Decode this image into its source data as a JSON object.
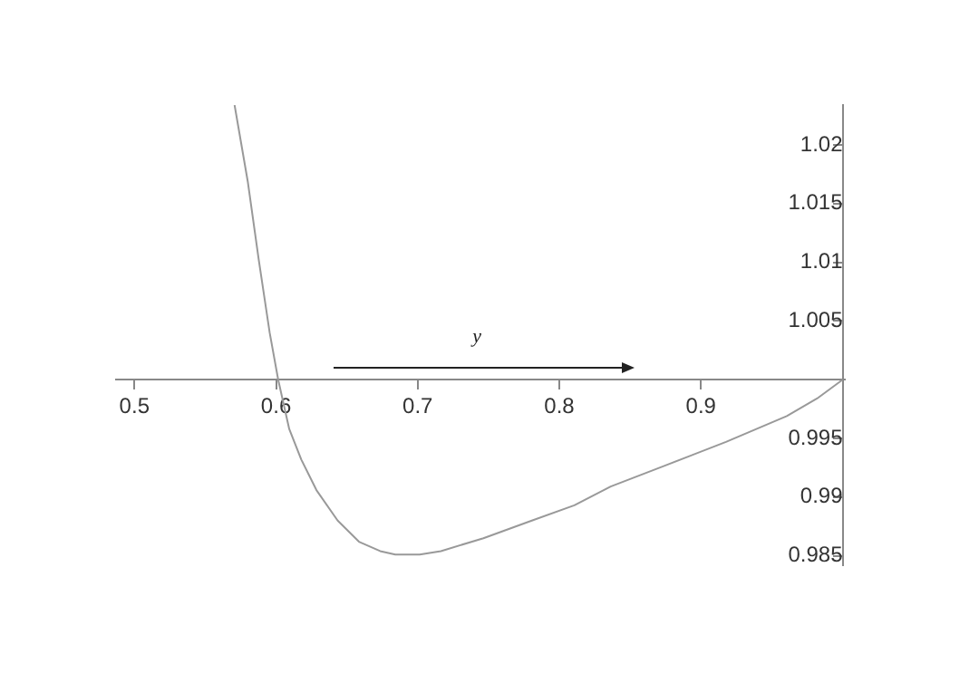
{
  "chart_data": {
    "type": "line",
    "color": "#999999",
    "x": [
      0.5707,
      0.58,
      0.5878,
      0.5955,
      0.6015,
      0.6093,
      0.6178,
      0.6285,
      0.6435,
      0.6585,
      0.6735,
      0.6842,
      0.7014,
      0.7164,
      0.7464,
      0.7806,
      0.8106,
      0.8363,
      0.8749,
      0.9177,
      0.9606,
      0.982,
      1.0
    ],
    "values": [
      1.0234,
      1.0169,
      1.0102,
      1.004,
      1.0,
      0.9958,
      0.9932,
      0.9906,
      0.988,
      0.9862,
      0.9854,
      0.9851,
      0.9851,
      0.9854,
      0.9865,
      0.988,
      0.9893,
      0.9909,
      0.9927,
      0.9947,
      0.9969,
      0.9984,
      1.0
    ],
    "xlim": [
      0.487,
      1.0016
    ],
    "ylim": [
      0.9842,
      1.0234
    ],
    "xticks": [
      0.5,
      0.6,
      0.7,
      0.8,
      0.9
    ],
    "yticks": [
      0.985,
      0.99,
      0.995,
      1.005,
      1.01,
      1.015,
      1.02
    ],
    "annotations": [
      "y"
    ]
  }
}
